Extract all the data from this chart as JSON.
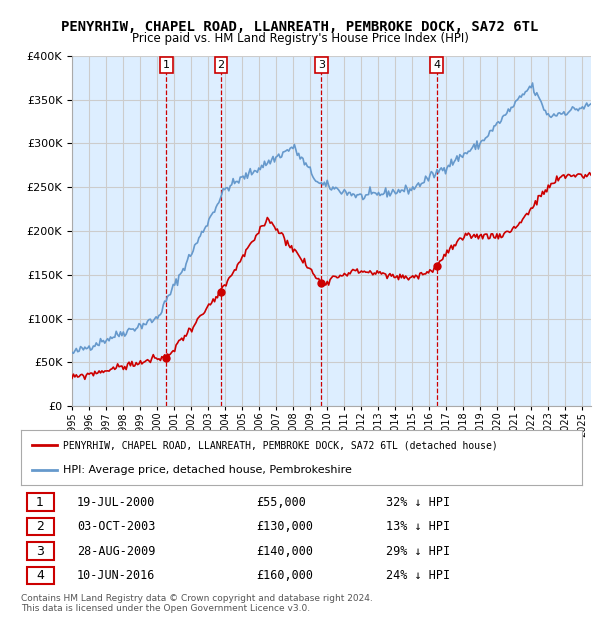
{
  "title": "PENYRHIW, CHAPEL ROAD, LLANREATH, PEMBROKE DOCK, SA72 6TL",
  "subtitle": "Price paid vs. HM Land Registry's House Price Index (HPI)",
  "ylim": [
    0,
    400000
  ],
  "yticks": [
    0,
    50000,
    100000,
    150000,
    200000,
    250000,
    300000,
    350000,
    400000
  ],
  "xlim_start": 1995.0,
  "xlim_end": 2025.5,
  "sale_dates": [
    2000.54,
    2003.75,
    2009.66,
    2016.44
  ],
  "sale_prices": [
    55000,
    130000,
    140000,
    160000
  ],
  "sale_labels": [
    "1",
    "2",
    "3",
    "4"
  ],
  "legend_red": "PENYRHIW, CHAPEL ROAD, LLANREATH, PEMBROKE DOCK, SA72 6TL (detached house)",
  "legend_blue": "HPI: Average price, detached house, Pembrokeshire",
  "table_rows": [
    {
      "num": "1",
      "date": "19-JUL-2000",
      "price": "£55,000",
      "hpi": "32% ↓ HPI"
    },
    {
      "num": "2",
      "date": "03-OCT-2003",
      "price": "£130,000",
      "hpi": "13% ↓ HPI"
    },
    {
      "num": "3",
      "date": "28-AUG-2009",
      "price": "£140,000",
      "hpi": "29% ↓ HPI"
    },
    {
      "num": "4",
      "date": "10-JUN-2016",
      "price": "£160,000",
      "hpi": "24% ↓ HPI"
    }
  ],
  "footnote": "Contains HM Land Registry data © Crown copyright and database right 2024.\nThis data is licensed under the Open Government Licence v3.0.",
  "red_color": "#cc0000",
  "blue_color": "#6699cc",
  "vline_color": "#cc0000",
  "grid_color": "#cccccc",
  "bg_color": "#ddeeff",
  "title_fontsize": 10,
  "subtitle_fontsize": 9
}
